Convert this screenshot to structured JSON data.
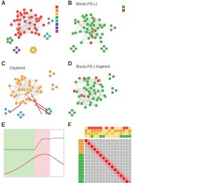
{
  "panels": [
    {
      "letter": "A"
    },
    {
      "letter": "B",
      "title": "Blocks PD-L1"
    },
    {
      "letter": "C",
      "title": "Displaced"
    },
    {
      "letter": "D",
      "title": "Blocks PD-1 fragment"
    },
    {
      "letter": "E"
    },
    {
      "letter": "F"
    }
  ]
}
